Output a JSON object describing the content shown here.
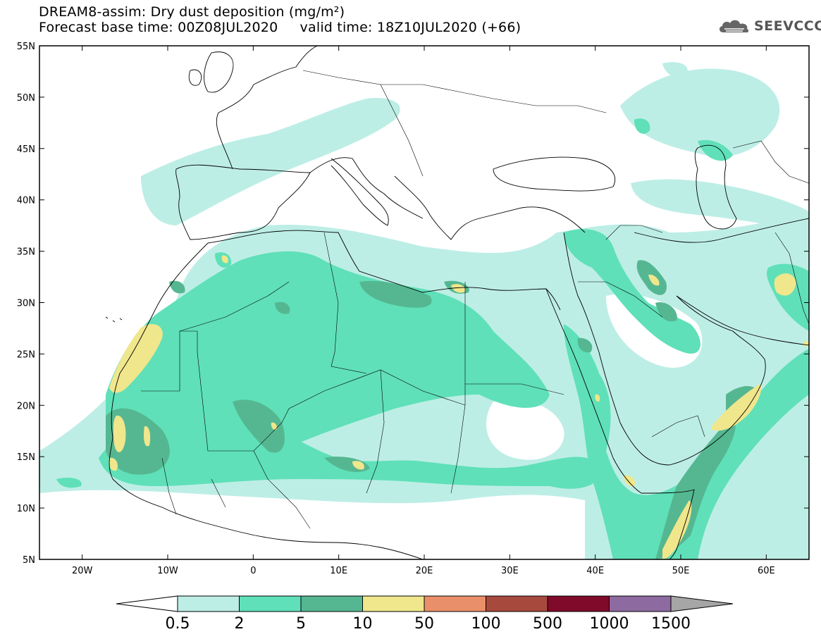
{
  "header": {
    "title_line1": "DREAM8-assim: Dry dust deposition (mg/m²)",
    "title_line2": "Forecast base time: 00Z08JUL2020     valid time: 18Z10JUL2020 (+66)"
  },
  "logo": {
    "text": "SEEVCCC",
    "icon": "cloud-icon"
  },
  "map": {
    "lon_range": [
      -25,
      65
    ],
    "lat_range": [
      5,
      55
    ],
    "lat_ticks": [
      "55N",
      "50N",
      "45N",
      "40N",
      "35N",
      "30N",
      "25N",
      "20N",
      "15N",
      "10N",
      "5N"
    ],
    "lon_ticks": [
      "20W",
      "10W",
      "0",
      "10E",
      "20E",
      "30E",
      "40E",
      "50E",
      "60E"
    ]
  },
  "legend": {
    "labels": [
      "0.5",
      "2",
      "5",
      "10",
      "50",
      "100",
      "500",
      "1000",
      "1500"
    ],
    "colors": [
      "#bdeee6",
      "#5fe0b8",
      "#55b791",
      "#f0e68c",
      "#e9906a",
      "#a8493d",
      "#7f0a2a",
      "#8d6aa0"
    ],
    "under_color": "#ffffff",
    "over_color": "#a6a6a6"
  }
}
